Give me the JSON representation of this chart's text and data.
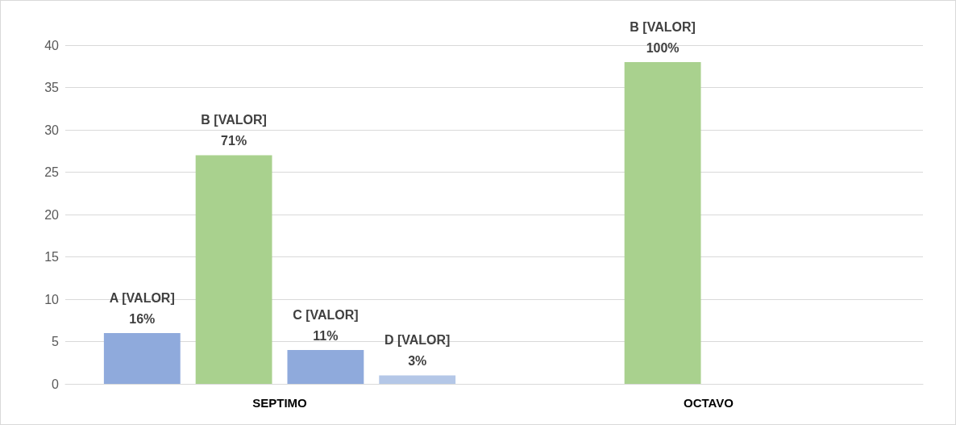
{
  "chart_data": {
    "type": "bar",
    "categories": [
      "SEPTIMO",
      "OCTAVO"
    ],
    "series": [
      {
        "color": "#8faadc",
        "values": [
          6,
          null
        ]
      },
      {
        "color": "#a9d18e",
        "values": [
          27,
          38
        ]
      },
      {
        "color": "#8faadc",
        "values": [
          4,
          null
        ]
      },
      {
        "color": "#b4c7e7",
        "values": [
          1,
          null
        ]
      }
    ],
    "annotations": [
      "A [VALOR]\n16%",
      "B [VALOR]\n71%",
      "C [VALOR]\n11%",
      "D [VALOR]\n3%",
      "B [VALOR]\n100%"
    ],
    "ylim": [
      0,
      40
    ],
    "yticks": [
      0,
      5,
      10,
      15,
      20,
      25,
      30,
      35,
      40
    ],
    "grid": "y"
  }
}
